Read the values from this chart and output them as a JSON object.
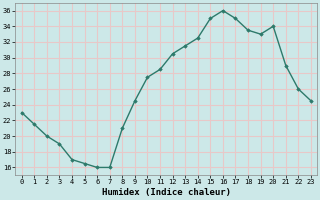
{
  "x": [
    0,
    1,
    2,
    3,
    4,
    5,
    6,
    7,
    8,
    9,
    10,
    11,
    12,
    13,
    14,
    15,
    16,
    17,
    18,
    19,
    20,
    21,
    22,
    23
  ],
  "y": [
    23,
    21.5,
    20,
    19,
    17,
    16.5,
    16,
    16,
    21,
    24.5,
    27.5,
    28.5,
    30.5,
    31.5,
    32.5,
    35,
    36,
    35,
    33.5,
    33,
    34,
    29,
    26,
    24.5
  ],
  "title": "",
  "xlabel": "Humidex (Indice chaleur)",
  "ylabel": "",
  "ylim": [
    15,
    37
  ],
  "xlim": [
    -0.5,
    23.5
  ],
  "yticks": [
    16,
    18,
    20,
    22,
    24,
    26,
    28,
    30,
    32,
    34,
    36
  ],
  "xticks": [
    0,
    1,
    2,
    3,
    4,
    5,
    6,
    7,
    8,
    9,
    10,
    11,
    12,
    13,
    14,
    15,
    16,
    17,
    18,
    19,
    20,
    21,
    22,
    23
  ],
  "line_color": "#2d7a6b",
  "marker": "D",
  "marker_size": 1.8,
  "bg_color": "#cce8e8",
  "grid_color": "#e8c8c8",
  "line_width": 1.0,
  "tick_fontsize": 5.0,
  "xlabel_fontsize": 6.5
}
